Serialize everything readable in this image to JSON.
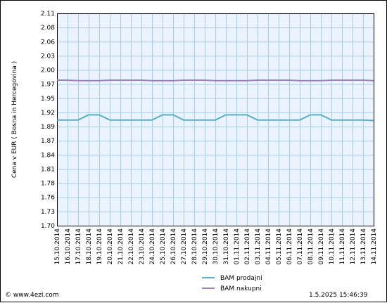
{
  "footer": {
    "source": "© www.4ezi.com",
    "timestamp": "1.5.2025 15:46:39"
  },
  "chart_data": {
    "type": "line",
    "title": "",
    "xlabel": "",
    "ylabel": "Cena v EUR  ( Bosna in Hercegovina )",
    "ylim": [
      1.7,
      2.11
    ],
    "yticks": [
      "2.11",
      "2.08",
      "2.06",
      "2.03",
      "2.00",
      "1.97",
      "1.95",
      "1.92",
      "1.89",
      "1.87",
      "1.84",
      "1.81",
      "1.78",
      "1.76",
      "1.73",
      "1.70"
    ],
    "categories": [
      "15.10.2014",
      "16.10.2014",
      "17.10.2014",
      "18.10.2014",
      "19.10.2014",
      "20.10.2014",
      "21.10.2014",
      "22.10.2014",
      "23.10.2014",
      "24.10.2014",
      "25.10.2014",
      "26.10.2014",
      "27.10.2014",
      "28.10.2014",
      "29.10.2014",
      "30.10.2014",
      "31.10.2014",
      "01.11.2014",
      "02.11.2014",
      "03.11.2014",
      "04.11.2014",
      "05.11.2014",
      "06.11.2014",
      "07.11.2014",
      "08.11.2014",
      "09.11.2014",
      "10.11.2014",
      "11.11.2014",
      "12.11.2014",
      "13.11.2014",
      "14.11.2014"
    ],
    "grid": true,
    "legend_placement": "bottom-center",
    "series": [
      {
        "name": "BAM prodajni",
        "color": "#5aaec8",
        "values": [
          1.904,
          1.904,
          1.904,
          1.914,
          1.914,
          1.904,
          1.904,
          1.904,
          1.904,
          1.904,
          1.914,
          1.914,
          1.904,
          1.904,
          1.904,
          1.904,
          1.914,
          1.914,
          1.914,
          1.904,
          1.904,
          1.904,
          1.904,
          1.904,
          1.914,
          1.914,
          1.904,
          1.904,
          1.904,
          1.904,
          1.903
        ]
      },
      {
        "name": "BAM nakupni",
        "color": "#a080c0",
        "values": [
          1.981,
          1.981,
          1.98,
          1.98,
          1.98,
          1.981,
          1.981,
          1.981,
          1.981,
          1.98,
          1.98,
          1.98,
          1.981,
          1.981,
          1.981,
          1.98,
          1.98,
          1.98,
          1.98,
          1.981,
          1.981,
          1.981,
          1.981,
          1.98,
          1.98,
          1.98,
          1.981,
          1.981,
          1.981,
          1.981,
          1.98
        ]
      }
    ]
  }
}
